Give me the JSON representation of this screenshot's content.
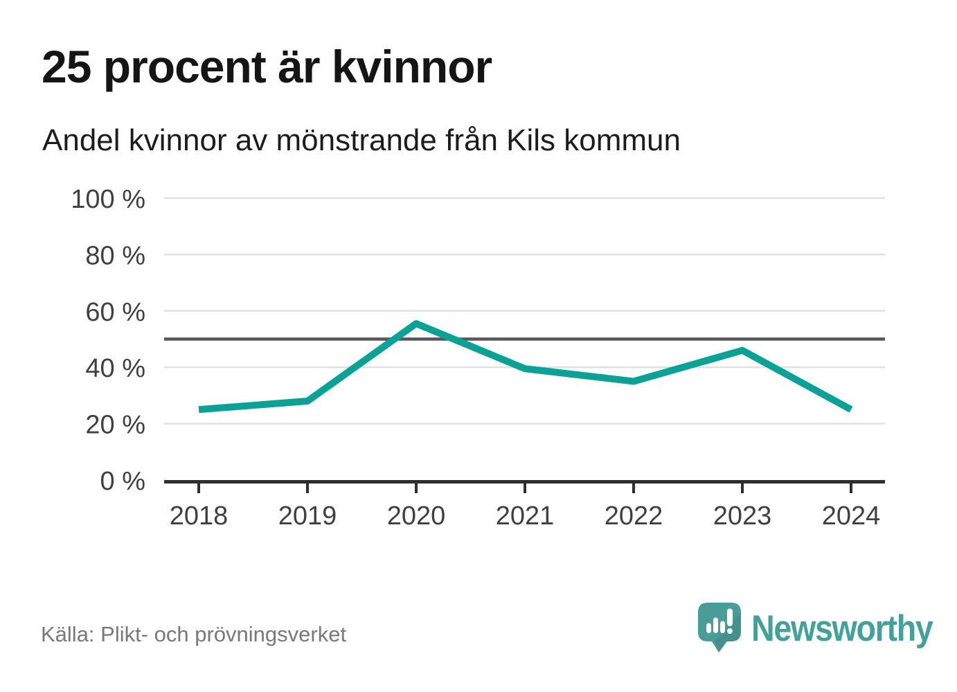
{
  "header": {
    "title": "25 procent är kvinnor",
    "subtitle": "Andel kvinnor av mönstrande från Kils kommun"
  },
  "chart_data": {
    "type": "line",
    "title": "25 procent är kvinnor",
    "subtitle": "Andel kvinnor av mönstrande från Kils kommun",
    "x": [
      2018,
      2019,
      2020,
      2021,
      2022,
      2023,
      2024
    ],
    "x_tick_labels": [
      "2018",
      "2019",
      "2020",
      "2021",
      "2022",
      "2023",
      "2024"
    ],
    "series": [
      {
        "name": "Andel kvinnor av mönstrande",
        "values": [
          25,
          28,
          55.5,
          39.5,
          35,
          46,
          25
        ]
      }
    ],
    "ylim": [
      0,
      100
    ],
    "y_ticks": [
      0,
      20,
      40,
      60,
      80,
      100
    ],
    "y_tick_labels": [
      "0 %",
      "20 %",
      "40 %",
      "60 %",
      "80 %",
      "100 %"
    ],
    "reference_line": {
      "value": 50
    },
    "grid": "horizontal",
    "legend": "none",
    "colors": {
      "line": "#0aa296",
      "reference_line": "#55555a",
      "gridline": "#e0e0e0",
      "axis": "#2e2e2e",
      "tick_label": "#3f3f3f"
    }
  },
  "footer": {
    "source": "Källa: Plikt- och prövningsverket"
  },
  "logo": {
    "brand": "Newsworthy",
    "color": "#43a19a"
  }
}
